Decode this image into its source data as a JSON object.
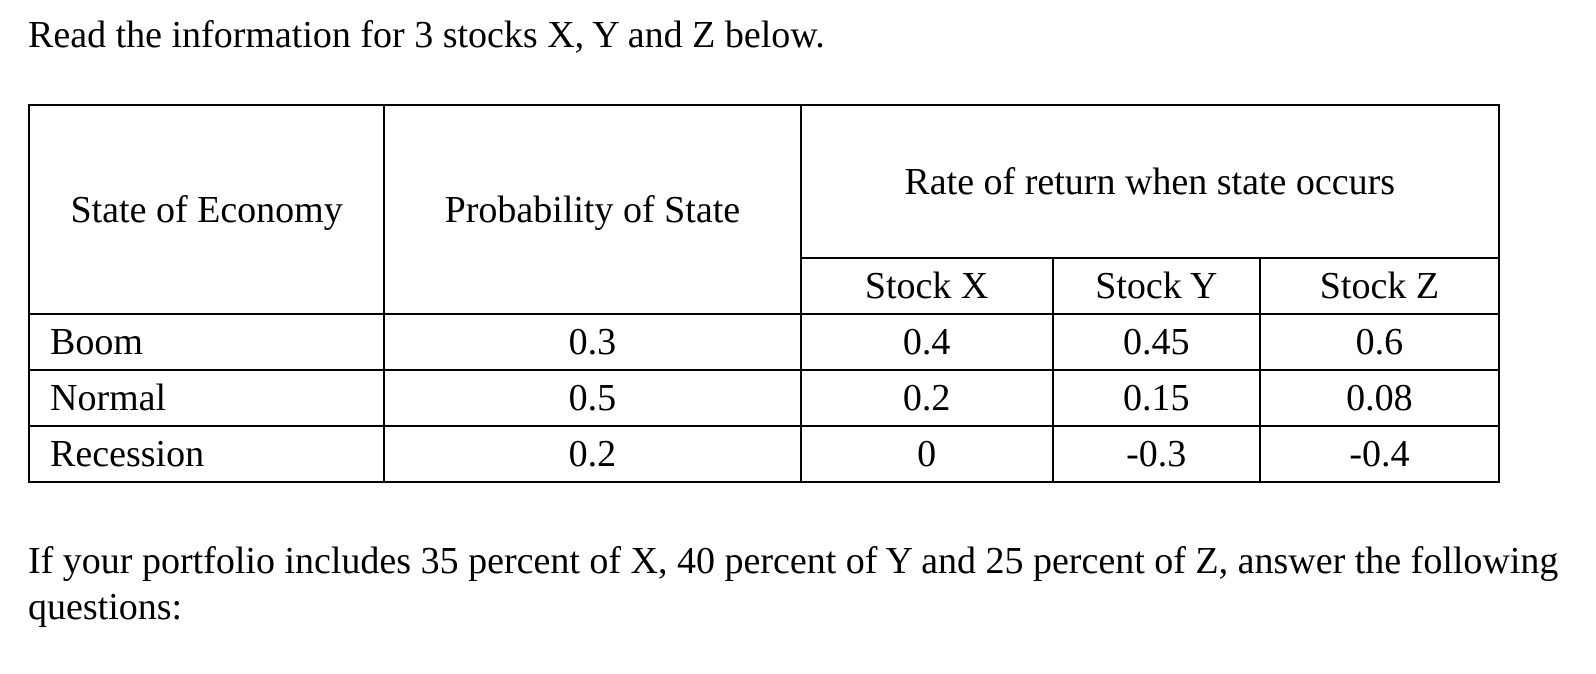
{
  "intro_text": "Read the information for 3 stocks X, Y and Z below.",
  "table": {
    "header_state": "State of Economy",
    "header_probability": "Probability of State",
    "header_group": "Rate of return when state occurs",
    "stock_headers": [
      "Stock X",
      "Stock Y",
      "Stock Z"
    ],
    "rows": [
      {
        "state": "Boom",
        "probability": "0.3",
        "x": "0.4",
        "y": "0.45",
        "z": "0.6"
      },
      {
        "state": "Normal",
        "probability": "0.5",
        "x": "0.2",
        "y": "0.15",
        "z": "0.08"
      },
      {
        "state": "Recession",
        "probability": "0.2",
        "x": "0",
        "y": "-0.3",
        "z": "-0.4"
      }
    ]
  },
  "question_text": "If your portfolio includes 35 percent of X, 40 percent of Y and 25 percent of Z, answer the following questions:"
}
